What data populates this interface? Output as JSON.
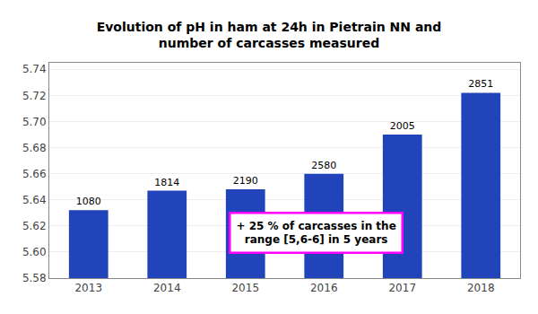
{
  "chart_data": {
    "type": "bar",
    "title": "Evolution of pH in ham at 24h in Pietrain NN and\nnumber of carcasses measured",
    "categories": [
      "2013",
      "2014",
      "2015",
      "2016",
      "2017",
      "2018"
    ],
    "values": [
      5.632,
      5.647,
      5.648,
      5.66,
      5.69,
      5.722
    ],
    "counts": [
      1080,
      1814,
      2190,
      2580,
      2005,
      2851
    ],
    "color": "#2244bb",
    "ylim": [
      5.58,
      5.745
    ],
    "yticks": [
      5.58,
      {
        "value": 5.6,
        "label": "5.60"
      },
      5.62,
      5.64,
      5.66,
      5.68,
      {
        "value": 5.7,
        "label": "5.70"
      },
      5.72,
      5.74
    ],
    "grid": true,
    "annotations": [
      {
        "text": "+ 25 % of carcasses in the\nrange [5,6-6] in 5 years",
        "color": "#ff00ff"
      }
    ]
  }
}
